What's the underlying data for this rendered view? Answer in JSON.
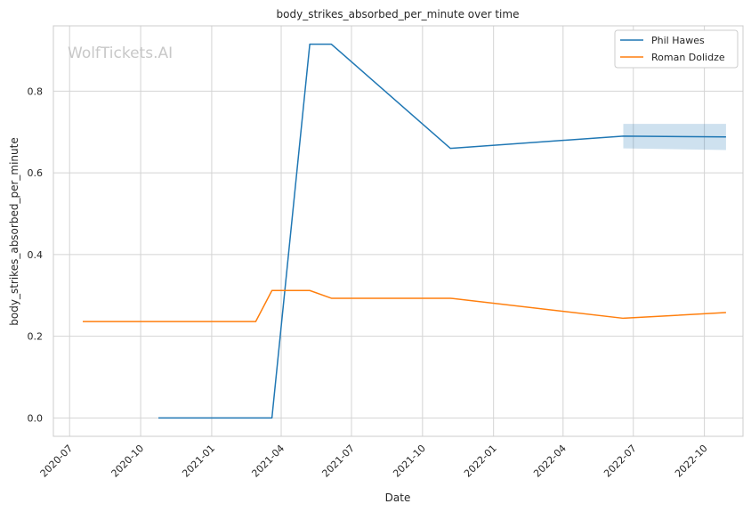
{
  "chart_data": {
    "type": "line",
    "title": "body_strikes_absorbed_per_minute over time",
    "xlabel": "Date",
    "ylabel": "body_strikes_absorbed_per_minute",
    "watermark": "WolfTickets.AI",
    "xlim": [
      "2020-06-10",
      "2022-11-20"
    ],
    "ylim": [
      -0.045,
      0.96
    ],
    "x_ticks": [
      "2020-07-01",
      "2020-10-01",
      "2021-01-01",
      "2021-04-01",
      "2021-07-01",
      "2021-10-01",
      "2022-01-01",
      "2022-04-01",
      "2022-07-01",
      "2022-10-01"
    ],
    "x_tick_labels": [
      "2020-07",
      "2020-10",
      "2021-01",
      "2021-04",
      "2021-07",
      "2021-10",
      "2022-01",
      "2022-04",
      "2022-07",
      "2022-10"
    ],
    "y_ticks": [
      0.0,
      0.2,
      0.4,
      0.6,
      0.8
    ],
    "y_tick_labels": [
      "0.0",
      "0.2",
      "0.4",
      "0.6",
      "0.8"
    ],
    "grid": true,
    "legend_position": "top-right",
    "series": [
      {
        "name": "Phil Hawes",
        "color": "#1f77b4",
        "points": [
          {
            "x": "2020-10-24",
            "y": 0.0
          },
          {
            "x": "2021-03-20",
            "y": 0.0
          },
          {
            "x": "2021-05-08",
            "y": 0.915
          },
          {
            "x": "2021-06-05",
            "y": 0.915
          },
          {
            "x": "2021-11-06",
            "y": 0.66
          },
          {
            "x": "2022-06-18",
            "y": 0.69
          },
          {
            "x": "2022-10-29",
            "y": 0.688
          }
        ],
        "band": [
          {
            "x": "2022-06-18",
            "lo": 0.66,
            "hi": 0.72
          },
          {
            "x": "2022-10-29",
            "lo": 0.656,
            "hi": 0.72
          }
        ]
      },
      {
        "name": "Roman Dolidze",
        "color": "#ff7f0e",
        "points": [
          {
            "x": "2020-07-18",
            "y": 0.236
          },
          {
            "x": "2021-02-27",
            "y": 0.236
          },
          {
            "x": "2021-03-20",
            "y": 0.312
          },
          {
            "x": "2021-05-08",
            "y": 0.312
          },
          {
            "x": "2021-06-05",
            "y": 0.293
          },
          {
            "x": "2021-11-06",
            "y": 0.293
          },
          {
            "x": "2022-06-18",
            "y": 0.244
          },
          {
            "x": "2022-10-29",
            "y": 0.258
          }
        ]
      }
    ]
  }
}
